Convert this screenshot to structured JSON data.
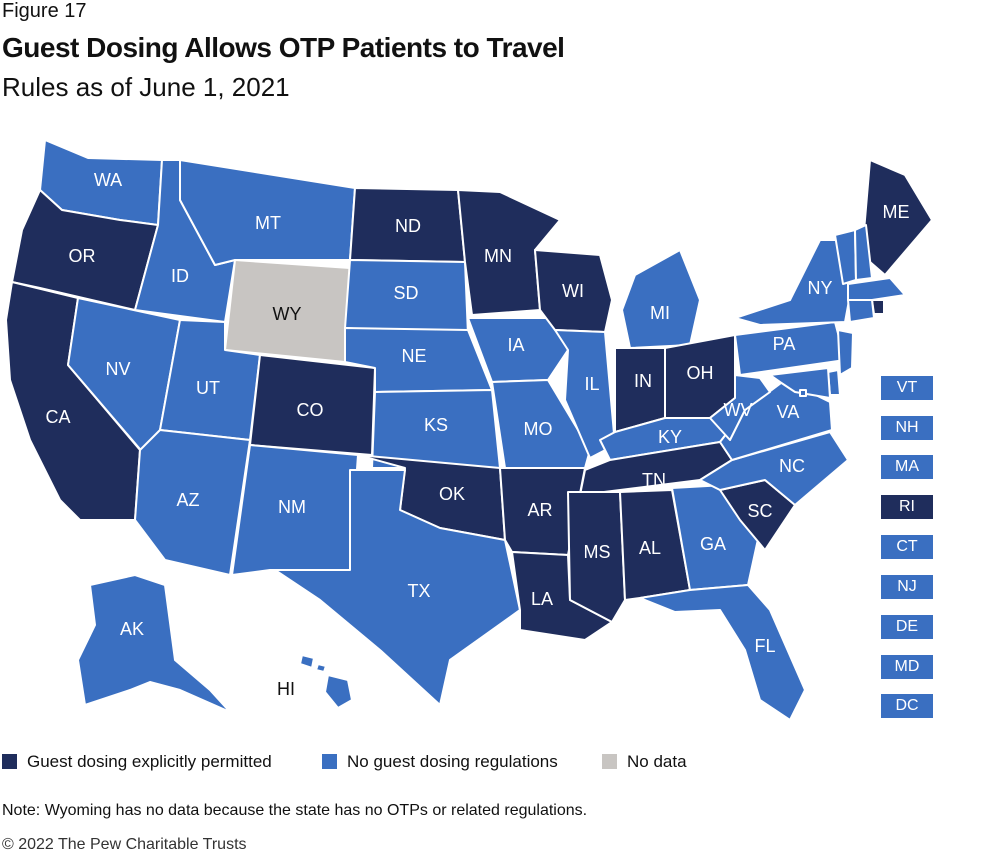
{
  "header": {
    "figure_label": "Figure 17",
    "title": "Guest Dosing Allows OTP Patients to Travel",
    "subtitle": "Rules as of June 1, 2021"
  },
  "colors": {
    "permitted": "#1f2d5c",
    "no_regulations": "#3a6fc1",
    "no_data": "#c8c5c2",
    "label_on_dark": "#ffffff",
    "label_on_light": "#111111"
  },
  "categories": {
    "permitted": "Guest dosing explicitly permitted",
    "no_regulations": "No guest dosing regulations",
    "no_data": "No data"
  },
  "states": {
    "WA": "no_regulations",
    "OR": "permitted",
    "CA": "permitted",
    "ID": "no_regulations",
    "NV": "no_regulations",
    "MT": "no_regulations",
    "WY": "no_data",
    "UT": "no_regulations",
    "AZ": "no_regulations",
    "CO": "permitted",
    "NM": "no_regulations",
    "ND": "permitted",
    "SD": "no_regulations",
    "NE": "no_regulations",
    "KS": "no_regulations",
    "OK": "permitted",
    "TX": "no_regulations",
    "MN": "permitted",
    "IA": "no_regulations",
    "MO": "no_regulations",
    "AR": "permitted",
    "LA": "permitted",
    "WI": "permitted",
    "IL": "no_regulations",
    "MI": "no_regulations",
    "IN": "permitted",
    "OH": "permitted",
    "KY": "no_regulations",
    "TN": "permitted",
    "MS": "permitted",
    "AL": "permitted",
    "GA": "no_regulations",
    "FL": "no_regulations",
    "SC": "permitted",
    "NC": "no_regulations",
    "VA": "no_regulations",
    "WV": "no_regulations",
    "PA": "no_regulations",
    "NY": "no_regulations",
    "ME": "permitted",
    "AK": "no_regulations",
    "HI": "no_regulations",
    "VT": "no_regulations",
    "NH": "no_regulations",
    "MA": "no_regulations",
    "RI": "permitted",
    "CT": "no_regulations",
    "NJ": "no_regulations",
    "DE": "no_regulations",
    "MD": "no_regulations",
    "DC": "no_regulations"
  },
  "small_states": [
    "VT",
    "NH",
    "MA",
    "RI",
    "CT",
    "NJ",
    "DE",
    "MD",
    "DC"
  ],
  "note": "Note: Wyoming has no data because the state has no OTPs or related regulations.",
  "copyright": "© 2022 The Pew Charitable Trusts"
}
